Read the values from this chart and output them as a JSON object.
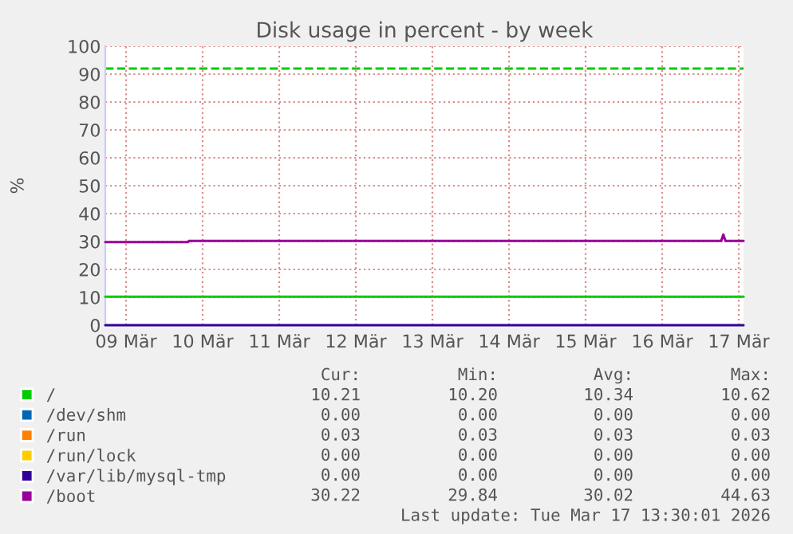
{
  "chart_data": {
    "type": "line",
    "title": "Disk usage in percent - by week",
    "ylabel": "%",
    "xlim": [
      "2026-03-09T05:30",
      "2026-03-17T13:30"
    ],
    "xticks": [
      {
        "value": "2026-03-09T12:00",
        "label": "09 Mär"
      },
      {
        "value": "2026-03-10T12:00",
        "label": "10 Mär"
      },
      {
        "value": "2026-03-11T12:00",
        "label": "11 Mär"
      },
      {
        "value": "2026-03-12T12:00",
        "label": "12 Mär"
      },
      {
        "value": "2026-03-13T12:00",
        "label": "13 Mär"
      },
      {
        "value": "2026-03-14T12:00",
        "label": "14 Mär"
      },
      {
        "value": "2026-03-15T12:00",
        "label": "15 Mär"
      },
      {
        "value": "2026-03-16T12:00",
        "label": "16 Mär"
      },
      {
        "value": "2026-03-17T12:00",
        "label": "17 Mär"
      }
    ],
    "ylim": [
      0,
      100
    ],
    "yticks": [
      0,
      10,
      20,
      30,
      40,
      50,
      60,
      70,
      80,
      90,
      100
    ],
    "grid": true,
    "legend": "bottom left",
    "marker": "none",
    "line_style": "solid",
    "ref_lines": [
      {
        "axis": "y",
        "value": 92,
        "color": "#00cc00",
        "line_style": "dashed"
      }
    ],
    "series": [
      {
        "name": "/",
        "color": "#00cc00",
        "x": [
          "2026-03-09T05:30",
          "2026-03-17T13:30"
        ],
        "values": [
          10.2,
          10.2
        ]
      },
      {
        "name": "/dev/shm",
        "color": "#0066b3"
      },
      {
        "name": "/run",
        "color": "#ff8000"
      },
      {
        "name": "/run/lock",
        "color": "#ffcc00"
      },
      {
        "name": "/var/lib/mysql-tmp",
        "color": "#330099",
        "x": [
          "2026-03-09T05:30",
          "2026-03-17T13:30"
        ],
        "values": [
          0,
          0
        ]
      },
      {
        "name": "/boot",
        "color": "#990099",
        "x": [
          "2026-03-09T05:30",
          "2026-03-10T07:30",
          "2026-03-10T07:40",
          "2026-03-17T06:30",
          "2026-03-17T07:10",
          "2026-03-17T07:50",
          "2026-03-17T13:30"
        ],
        "values": [
          29.8,
          29.8,
          30.2,
          30.2,
          32.5,
          30.2,
          30.2
        ]
      }
    ],
    "annotations": [
      "Cur:",
      "Min:",
      "Avg:",
      "Max:",
      "10.21",
      "10.20",
      "10.34",
      "10.62",
      "0.00",
      "0.00",
      "0.00",
      "0.00",
      "0.03",
      "0.03",
      "0.03",
      "0.03",
      "0.00",
      "0.00",
      "0.00",
      "0.00",
      "0.00",
      "0.00",
      "0.00",
      "0.00",
      "30.22",
      "29.84",
      "30.02",
      "44.63",
      "Last update: Tue Mar 17 13:30:01 2026"
    ]
  }
}
